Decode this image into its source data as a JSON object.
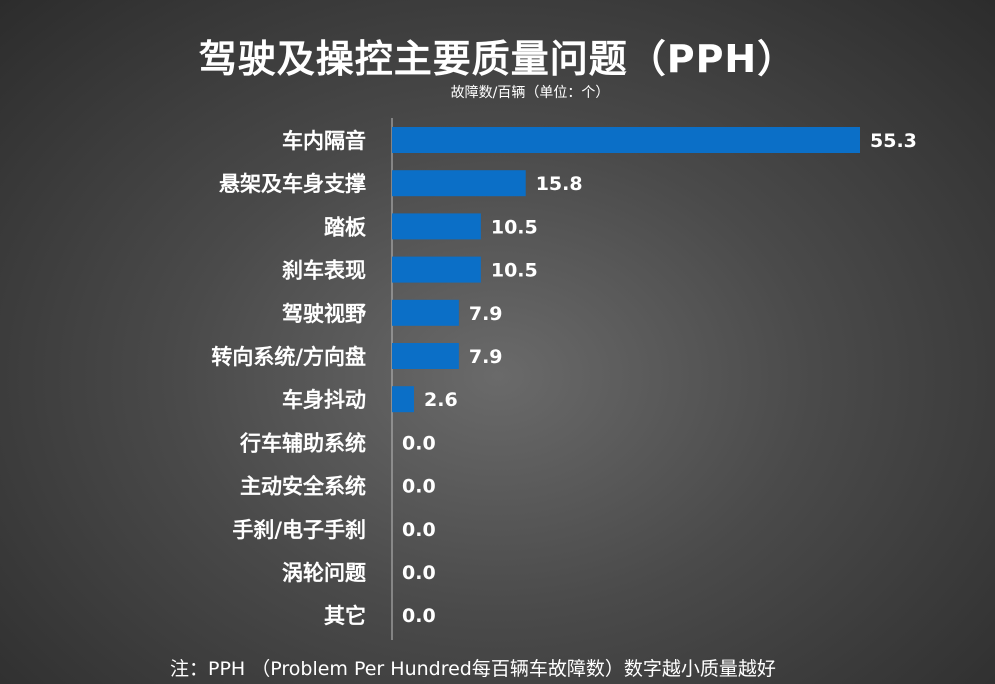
{
  "chart_data": {
    "type": "bar",
    "orientation": "horizontal",
    "title": "驾驶及操控主要质量问题（PPH）",
    "subtitle": "故障数/百辆（单位：个）",
    "footnote": "注：PPH （Problem Per Hundred每百辆车故障数）数字越小质量越好",
    "categories": [
      "车内隔音",
      "悬架及车身支撑",
      "踏板",
      "刹车表现",
      "驾驶视野",
      "转向系统/方向盘",
      "车身抖动",
      "行车辅助系统",
      "主动安全系统",
      "手刹/电子手刹",
      "涡轮问题",
      "其它"
    ],
    "values": [
      55.3,
      15.8,
      10.5,
      10.5,
      7.9,
      7.9,
      2.6,
      0.0,
      0.0,
      0.0,
      0.0,
      0.0
    ],
    "value_labels": [
      "55.3",
      "15.8",
      "10.5",
      "10.5",
      "7.9",
      "7.9",
      "2.6",
      "0.0",
      "0.0",
      "0.0",
      "0.0",
      "0.0"
    ],
    "xlim": [
      0,
      55.3
    ],
    "grid": false,
    "legend": "none",
    "bar_color": "#0b6fc7"
  }
}
